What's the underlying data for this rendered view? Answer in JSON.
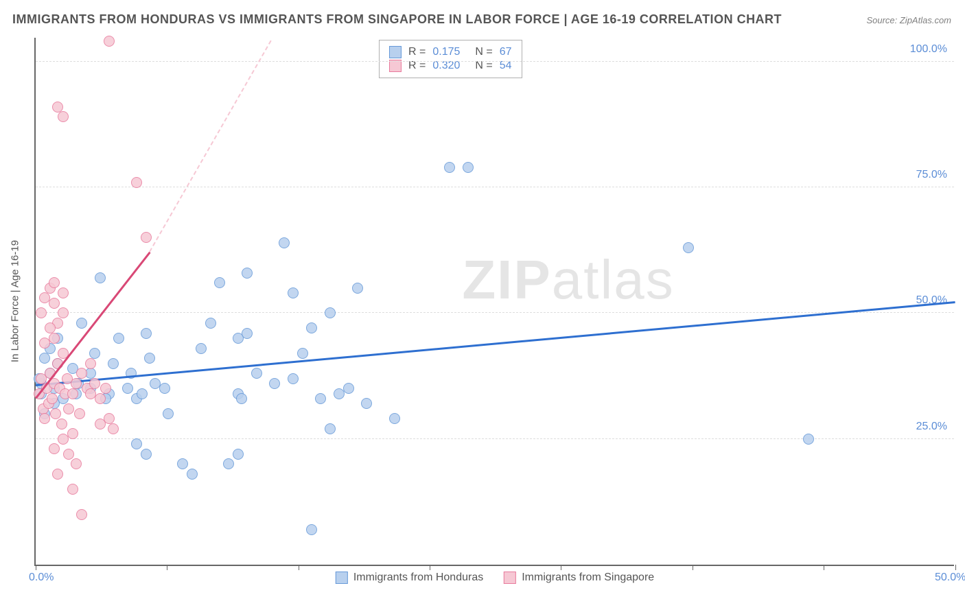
{
  "title": "IMMIGRANTS FROM HONDURAS VS IMMIGRANTS FROM SINGAPORE IN LABOR FORCE | AGE 16-19 CORRELATION CHART",
  "source": "Source: ZipAtlas.com",
  "watermark_bold": "ZIP",
  "watermark_thin": "atlas",
  "chart": {
    "type": "scatter",
    "y_axis_title": "In Labor Force | Age 16-19",
    "xlim": [
      0,
      50
    ],
    "ylim": [
      0,
      105
    ],
    "x_ticks": [
      0,
      7.14,
      14.28,
      21.42,
      28.56,
      35.7,
      42.84,
      50
    ],
    "x_tick_labels": {
      "0": "0.0%",
      "50": "50.0%"
    },
    "y_gridlines": [
      25,
      50,
      75,
      100
    ],
    "y_tick_labels": {
      "25": "25.0%",
      "50": "50.0%",
      "75": "75.0%",
      "100": "100.0%"
    },
    "background_color": "#ffffff",
    "grid_color": "#dddddd",
    "axis_color": "#666666",
    "axis_label_color": "#5b8dd6",
    "text_color": "#555555",
    "marker_radius": 8,
    "series": [
      {
        "name": "Immigrants from Honduras",
        "fill_color": "#b8d0ee",
        "stroke_color": "#6699d8",
        "trend_color": "#2e6fd0",
        "R": "0.175",
        "N": "67",
        "trend": {
          "x1": 0,
          "y1": 35.5,
          "x2": 50,
          "y2": 52
        },
        "points": [
          [
            0.3,
            36
          ],
          [
            0.5,
            41
          ],
          [
            0.8,
            38
          ],
          [
            1.0,
            35
          ],
          [
            1.2,
            40
          ],
          [
            1.5,
            33
          ],
          [
            1.2,
            45
          ],
          [
            0.2,
            37
          ],
          [
            2.0,
            39
          ],
          [
            2.3,
            36
          ],
          [
            2.5,
            48
          ],
          [
            3.0,
            35
          ],
          [
            3.2,
            42
          ],
          [
            3.5,
            57
          ],
          [
            4.0,
            34
          ],
          [
            4.2,
            40
          ],
          [
            4.5,
            45
          ],
          [
            5.0,
            35
          ],
          [
            5.2,
            38
          ],
          [
            5.5,
            33
          ],
          [
            5.8,
            34
          ],
          [
            6.0,
            46
          ],
          [
            6.2,
            41
          ],
          [
            6.5,
            36
          ],
          [
            7.0,
            35
          ],
          [
            7.2,
            30
          ],
          [
            5.5,
            24
          ],
          [
            6.0,
            22
          ],
          [
            8.0,
            20
          ],
          [
            8.5,
            18
          ],
          [
            10.5,
            20
          ],
          [
            11.0,
            34
          ],
          [
            11.2,
            33
          ],
          [
            11.0,
            45
          ],
          [
            11.5,
            46
          ],
          [
            9.0,
            43
          ],
          [
            9.5,
            48
          ],
          [
            12.0,
            38
          ],
          [
            13.0,
            36
          ],
          [
            14.0,
            37
          ],
          [
            14.5,
            42
          ],
          [
            15.0,
            47
          ],
          [
            14.0,
            54
          ],
          [
            10.0,
            56
          ],
          [
            11.5,
            58
          ],
          [
            15.5,
            33
          ],
          [
            16.0,
            27
          ],
          [
            16.5,
            34
          ],
          [
            17.0,
            35
          ],
          [
            18.0,
            32
          ],
          [
            13.5,
            64
          ],
          [
            16.0,
            50
          ],
          [
            17.5,
            55
          ],
          [
            15.0,
            7
          ],
          [
            11.0,
            22
          ],
          [
            19.5,
            29
          ],
          [
            22.5,
            79
          ],
          [
            23.5,
            79
          ],
          [
            35.5,
            63
          ],
          [
            42.0,
            25
          ],
          [
            0.5,
            30
          ],
          [
            1.0,
            32
          ],
          [
            0.3,
            34
          ],
          [
            0.8,
            43
          ],
          [
            2.2,
            34
          ],
          [
            3.0,
            38
          ],
          [
            3.8,
            33
          ]
        ]
      },
      {
        "name": "Immigrants from Singapore",
        "fill_color": "#f6c8d4",
        "stroke_color": "#e87a9c",
        "trend_color": "#d94876",
        "R": "0.320",
        "N": "54",
        "trend": {
          "x1": 0,
          "y1": 33,
          "x2": 6.2,
          "y2": 62
        },
        "trend_dash": {
          "x1": 6.2,
          "y1": 62,
          "x2": 12.8,
          "y2": 104
        },
        "points": [
          [
            0.2,
            34
          ],
          [
            0.3,
            37
          ],
          [
            0.4,
            31
          ],
          [
            0.5,
            29
          ],
          [
            0.6,
            35
          ],
          [
            0.7,
            32
          ],
          [
            0.8,
            38
          ],
          [
            0.9,
            33
          ],
          [
            1.0,
            36
          ],
          [
            1.1,
            30
          ],
          [
            1.2,
            40
          ],
          [
            1.3,
            35
          ],
          [
            1.4,
            28
          ],
          [
            1.5,
            42
          ],
          [
            1.6,
            34
          ],
          [
            1.7,
            37
          ],
          [
            1.8,
            31
          ],
          [
            1.0,
            45
          ],
          [
            1.2,
            48
          ],
          [
            1.5,
            50
          ],
          [
            0.5,
            44
          ],
          [
            0.8,
            47
          ],
          [
            1.0,
            52
          ],
          [
            0.3,
            50
          ],
          [
            2.0,
            34
          ],
          [
            2.2,
            36
          ],
          [
            2.4,
            30
          ],
          [
            2.5,
            38
          ],
          [
            2.8,
            35
          ],
          [
            3.0,
            34
          ],
          [
            3.2,
            36
          ],
          [
            3.5,
            33
          ],
          [
            3.8,
            35
          ],
          [
            4.0,
            29
          ],
          [
            4.2,
            27
          ],
          [
            3.5,
            28
          ],
          [
            2.0,
            26
          ],
          [
            1.5,
            25
          ],
          [
            1.0,
            23
          ],
          [
            1.8,
            22
          ],
          [
            2.2,
            20
          ],
          [
            1.2,
            18
          ],
          [
            2.0,
            15
          ],
          [
            2.5,
            10
          ],
          [
            0.8,
            55
          ],
          [
            1.5,
            54
          ],
          [
            1.0,
            56
          ],
          [
            0.5,
            53
          ],
          [
            5.5,
            76
          ],
          [
            6.0,
            65
          ],
          [
            4.0,
            104
          ],
          [
            1.2,
            91
          ],
          [
            1.5,
            89
          ],
          [
            3.0,
            40
          ]
        ]
      }
    ]
  }
}
